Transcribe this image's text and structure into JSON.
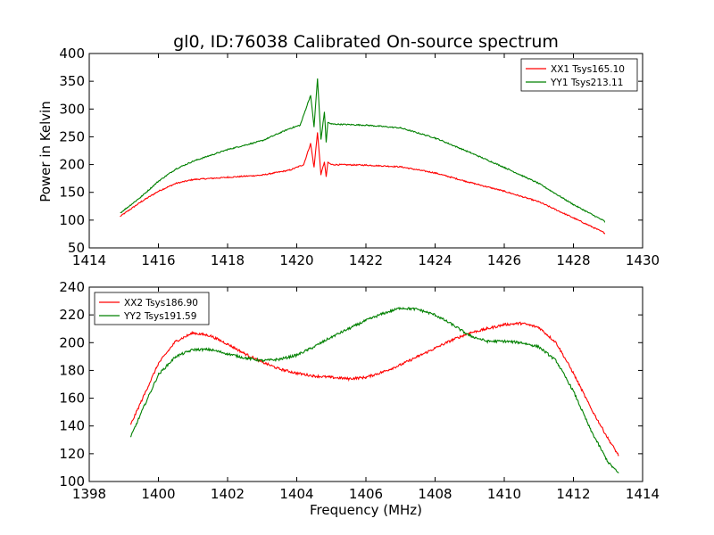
{
  "chart_data": [
    {
      "type": "line",
      "title": "gl0, ID:76038 Calibrated On-source spectrum",
      "xlabel": "",
      "ylabel": "Power in Kelvin",
      "xlim": [
        1414,
        1430
      ],
      "ylim": [
        50,
        400
      ],
      "xticks": [
        1414,
        1416,
        1418,
        1420,
        1422,
        1424,
        1426,
        1428,
        1430
      ],
      "yticks": [
        50,
        100,
        150,
        200,
        250,
        300,
        350,
        400
      ],
      "legend_position": "top-right",
      "grid": false,
      "series": [
        {
          "name": "XX1 Tsys165.10",
          "color": "#ff0000",
          "x": [
            1414.9,
            1415.5,
            1416.0,
            1416.5,
            1417.0,
            1418.0,
            1419.0,
            1419.8,
            1420.2,
            1420.4,
            1420.5,
            1420.6,
            1420.7,
            1420.8,
            1420.85,
            1420.9,
            1421.0,
            1422.0,
            1423.0,
            1424.0,
            1425.0,
            1426.0,
            1427.0,
            1428.0,
            1428.9
          ],
          "y": [
            107,
            133,
            152,
            166,
            173,
            177,
            181,
            190,
            200,
            238,
            195,
            258,
            182,
            205,
            178,
            204,
            200,
            199,
            196,
            185,
            168,
            152,
            133,
            104,
            77
          ]
        },
        {
          "name": "YY1 Tsys213.11",
          "color": "#008000",
          "x": [
            1414.9,
            1415.5,
            1416.0,
            1416.5,
            1417.0,
            1418.0,
            1419.0,
            1419.8,
            1420.1,
            1420.4,
            1420.5,
            1420.6,
            1420.7,
            1420.8,
            1420.85,
            1420.9,
            1421.0,
            1422.0,
            1423.0,
            1424.0,
            1425.0,
            1426.0,
            1427.0,
            1428.0,
            1428.9
          ],
          "y": [
            113,
            142,
            170,
            192,
            206,
            227,
            243,
            265,
            271,
            325,
            268,
            355,
            245,
            295,
            240,
            276,
            273,
            271,
            266,
            248,
            222,
            195,
            166,
            128,
            98
          ]
        }
      ]
    },
    {
      "type": "line",
      "title": "",
      "xlabel": "Frequency (MHz)",
      "ylabel": "",
      "xlim": [
        1398,
        1414
      ],
      "ylim": [
        100,
        240
      ],
      "xticks": [
        1398,
        1400,
        1402,
        1404,
        1406,
        1408,
        1410,
        1412,
        1414
      ],
      "yticks": [
        100,
        120,
        140,
        160,
        180,
        200,
        220,
        240
      ],
      "legend_position": "top-left",
      "grid": false,
      "series": [
        {
          "name": "XX2 Tsys186.90",
          "color": "#ff0000",
          "x": [
            1399.2,
            1399.6,
            1400.0,
            1400.5,
            1401.0,
            1401.5,
            1402.0,
            1402.5,
            1403.0,
            1403.5,
            1404.0,
            1404.5,
            1405.0,
            1405.5,
            1406.0,
            1406.5,
            1407.0,
            1407.5,
            1408.0,
            1408.5,
            1409.0,
            1409.5,
            1410.0,
            1410.5,
            1411.0,
            1411.5,
            1412.0,
            1412.5,
            1413.0,
            1413.3
          ],
          "y": [
            141,
            163,
            185,
            201,
            207,
            205,
            199,
            192,
            186,
            181,
            178,
            176,
            175,
            174,
            175,
            179,
            184,
            190,
            196,
            202,
            207,
            210,
            213,
            214,
            211,
            200,
            178,
            153,
            131,
            119
          ]
        },
        {
          "name": "YY2 Tsys191.59",
          "color": "#008000",
          "x": [
            1399.2,
            1399.6,
            1400.0,
            1400.5,
            1401.0,
            1401.5,
            1402.0,
            1402.5,
            1403.0,
            1403.5,
            1404.0,
            1404.5,
            1405.0,
            1405.5,
            1406.0,
            1406.5,
            1407.0,
            1407.5,
            1408.0,
            1408.5,
            1409.0,
            1409.5,
            1410.0,
            1410.5,
            1411.0,
            1411.5,
            1412.0,
            1412.5,
            1413.0,
            1413.3
          ],
          "y": [
            132,
            155,
            177,
            190,
            195,
            195,
            192,
            189,
            187,
            188,
            191,
            197,
            204,
            210,
            216,
            221,
            225,
            224,
            220,
            213,
            205,
            201,
            201,
            200,
            197,
            187,
            165,
            137,
            114,
            106
          ]
        }
      ]
    }
  ]
}
